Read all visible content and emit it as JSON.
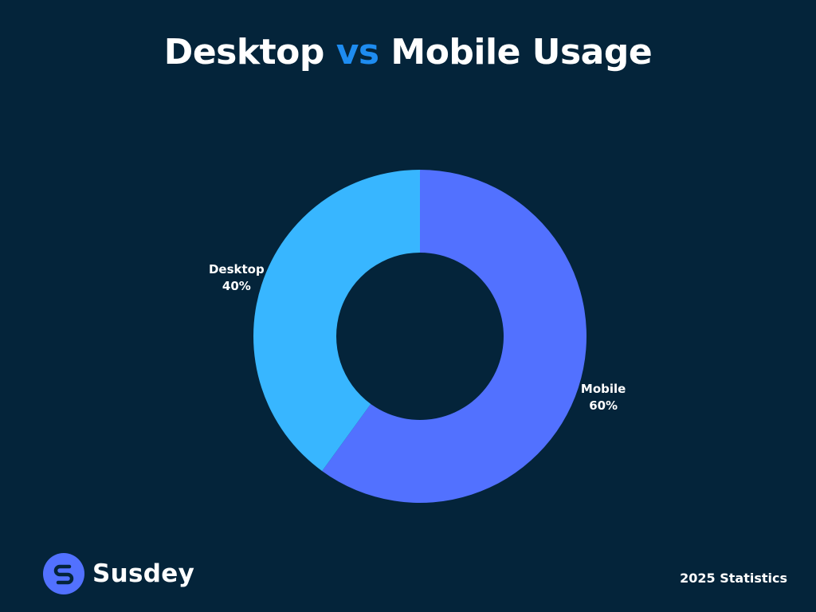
{
  "title": {
    "part1": "Desktop",
    "accent": "vs",
    "part2": "Mobile Usage"
  },
  "chart_data": {
    "type": "pie",
    "donut": true,
    "title": "Desktop vs Mobile Usage",
    "categories": [
      "Mobile",
      "Desktop"
    ],
    "values": [
      60,
      40
    ],
    "value_labels": [
      "60%",
      "40%"
    ],
    "colors": [
      "#5271ff",
      "#38b6ff"
    ],
    "start_angle_deg": 0,
    "direction": "clockwise"
  },
  "brand": {
    "name": "Susdey",
    "logo_icon": "s-logo-icon",
    "logo_color": "#5271ff"
  },
  "footer": {
    "note": "2025 Statistics"
  },
  "colors": {
    "background": "#04243a",
    "title_accent": "#1e8cf0",
    "text": "#ffffff"
  }
}
